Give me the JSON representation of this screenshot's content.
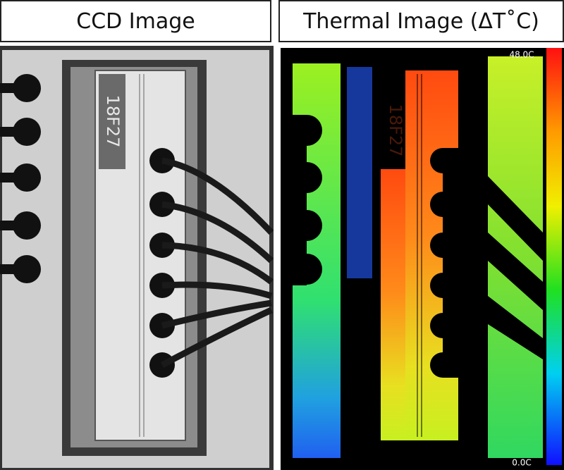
{
  "panels": [
    {
      "title": "CCD Image",
      "chip_label": "18F27"
    },
    {
      "title": "Thermal Image (ΔT˚C)",
      "chip_label": "18F27",
      "colorbar": {
        "max_label": "48.0C",
        "min_label": "0.0C"
      }
    }
  ]
}
